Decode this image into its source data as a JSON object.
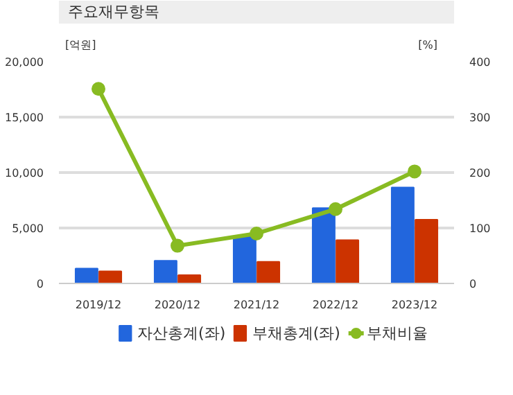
{
  "chart_data": {
    "type": "bar",
    "title": "주요재무항목",
    "ylabel": "[억원]",
    "y2label": "[%]",
    "categories": [
      "2019/12",
      "2020/12",
      "2021/12",
      "2022/12",
      "2023/12"
    ],
    "series": [
      {
        "name": "자산총계(좌)",
        "color": "#2266dd",
        "values": [
          1350,
          2050,
          4250,
          6800,
          8650
        ]
      },
      {
        "name": "부채총계(좌)",
        "color": "#cc3300",
        "values": [
          1100,
          750,
          1950,
          3900,
          5750
        ]
      },
      {
        "name": "부채비율",
        "type": "line",
        "axis": "y2",
        "color": "#88bb22",
        "values": [
          351,
          68,
          90,
          134,
          202
        ]
      }
    ],
    "ylim": [
      0,
      20000
    ],
    "yticks": [
      {
        "value": 0,
        "label": "0"
      },
      {
        "value": 5000,
        "label": "5,000"
      },
      {
        "value": 10000,
        "label": "10,000"
      },
      {
        "value": 15000,
        "label": "15,000"
      },
      {
        "value": 20000,
        "label": "20,000"
      }
    ],
    "y2lim": [
      0,
      400
    ],
    "y2ticks": [
      0,
      100,
      200,
      300,
      400
    ],
    "grid": "y",
    "legend": "bottom",
    "marker": "circle",
    "line_style": "solid"
  }
}
